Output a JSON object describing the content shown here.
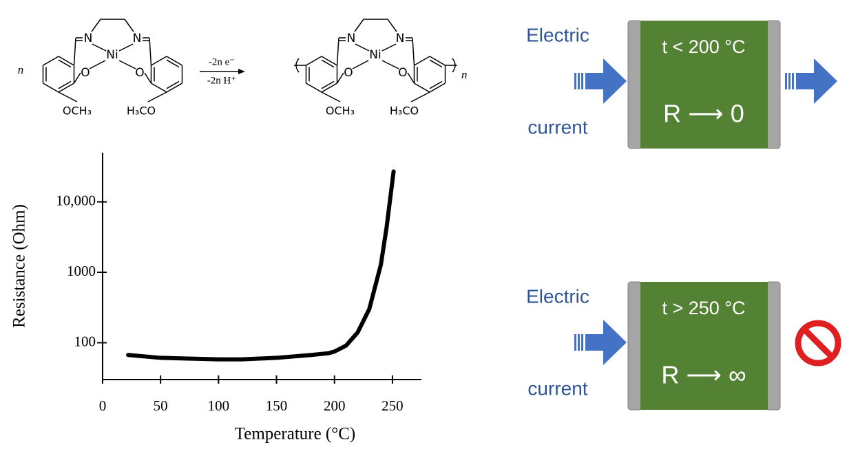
{
  "chart_data": {
    "type": "line",
    "xlabel": "Temperature (°C)",
    "ylabel": "Resistance (Ohm)",
    "x": [
      22,
      50,
      100,
      120,
      150,
      180,
      195,
      200,
      210,
      220,
      230,
      240,
      245,
      251
    ],
    "series": [
      {
        "color": "#000000",
        "values": [
          67,
          61,
          58,
          58,
          61,
          67,
          71,
          75,
          91,
          140,
          300,
          1280,
          4400,
          27000
        ]
      }
    ],
    "xlim": [
      0,
      275
    ],
    "xticks": [
      0,
      50,
      100,
      150,
      200,
      250
    ],
    "ylim": [
      30,
      50000
    ],
    "yscale": "log",
    "yticks": [
      100,
      1000,
      {
        "value": 10000,
        "label": "10,000"
      }
    ]
  },
  "scheme": {
    "index": "n",
    "N": "N",
    "Ni": "Ni",
    "O": "O",
    "methoxy_left": "OCH₃",
    "methoxy_right": "H₃CO",
    "reagent_1": "-2n e⁻",
    "reagent_2": "-2n H⁺"
  },
  "panels": [
    {
      "label_top": "Electric",
      "label_bottom": "current",
      "condition": "t < 200 °C",
      "resistance": "R ⟶ 0"
    },
    {
      "label_top": "Electric",
      "label_bottom": "current",
      "condition": "t > 250 °C",
      "resistance": "R ⟶ ∞"
    }
  ]
}
